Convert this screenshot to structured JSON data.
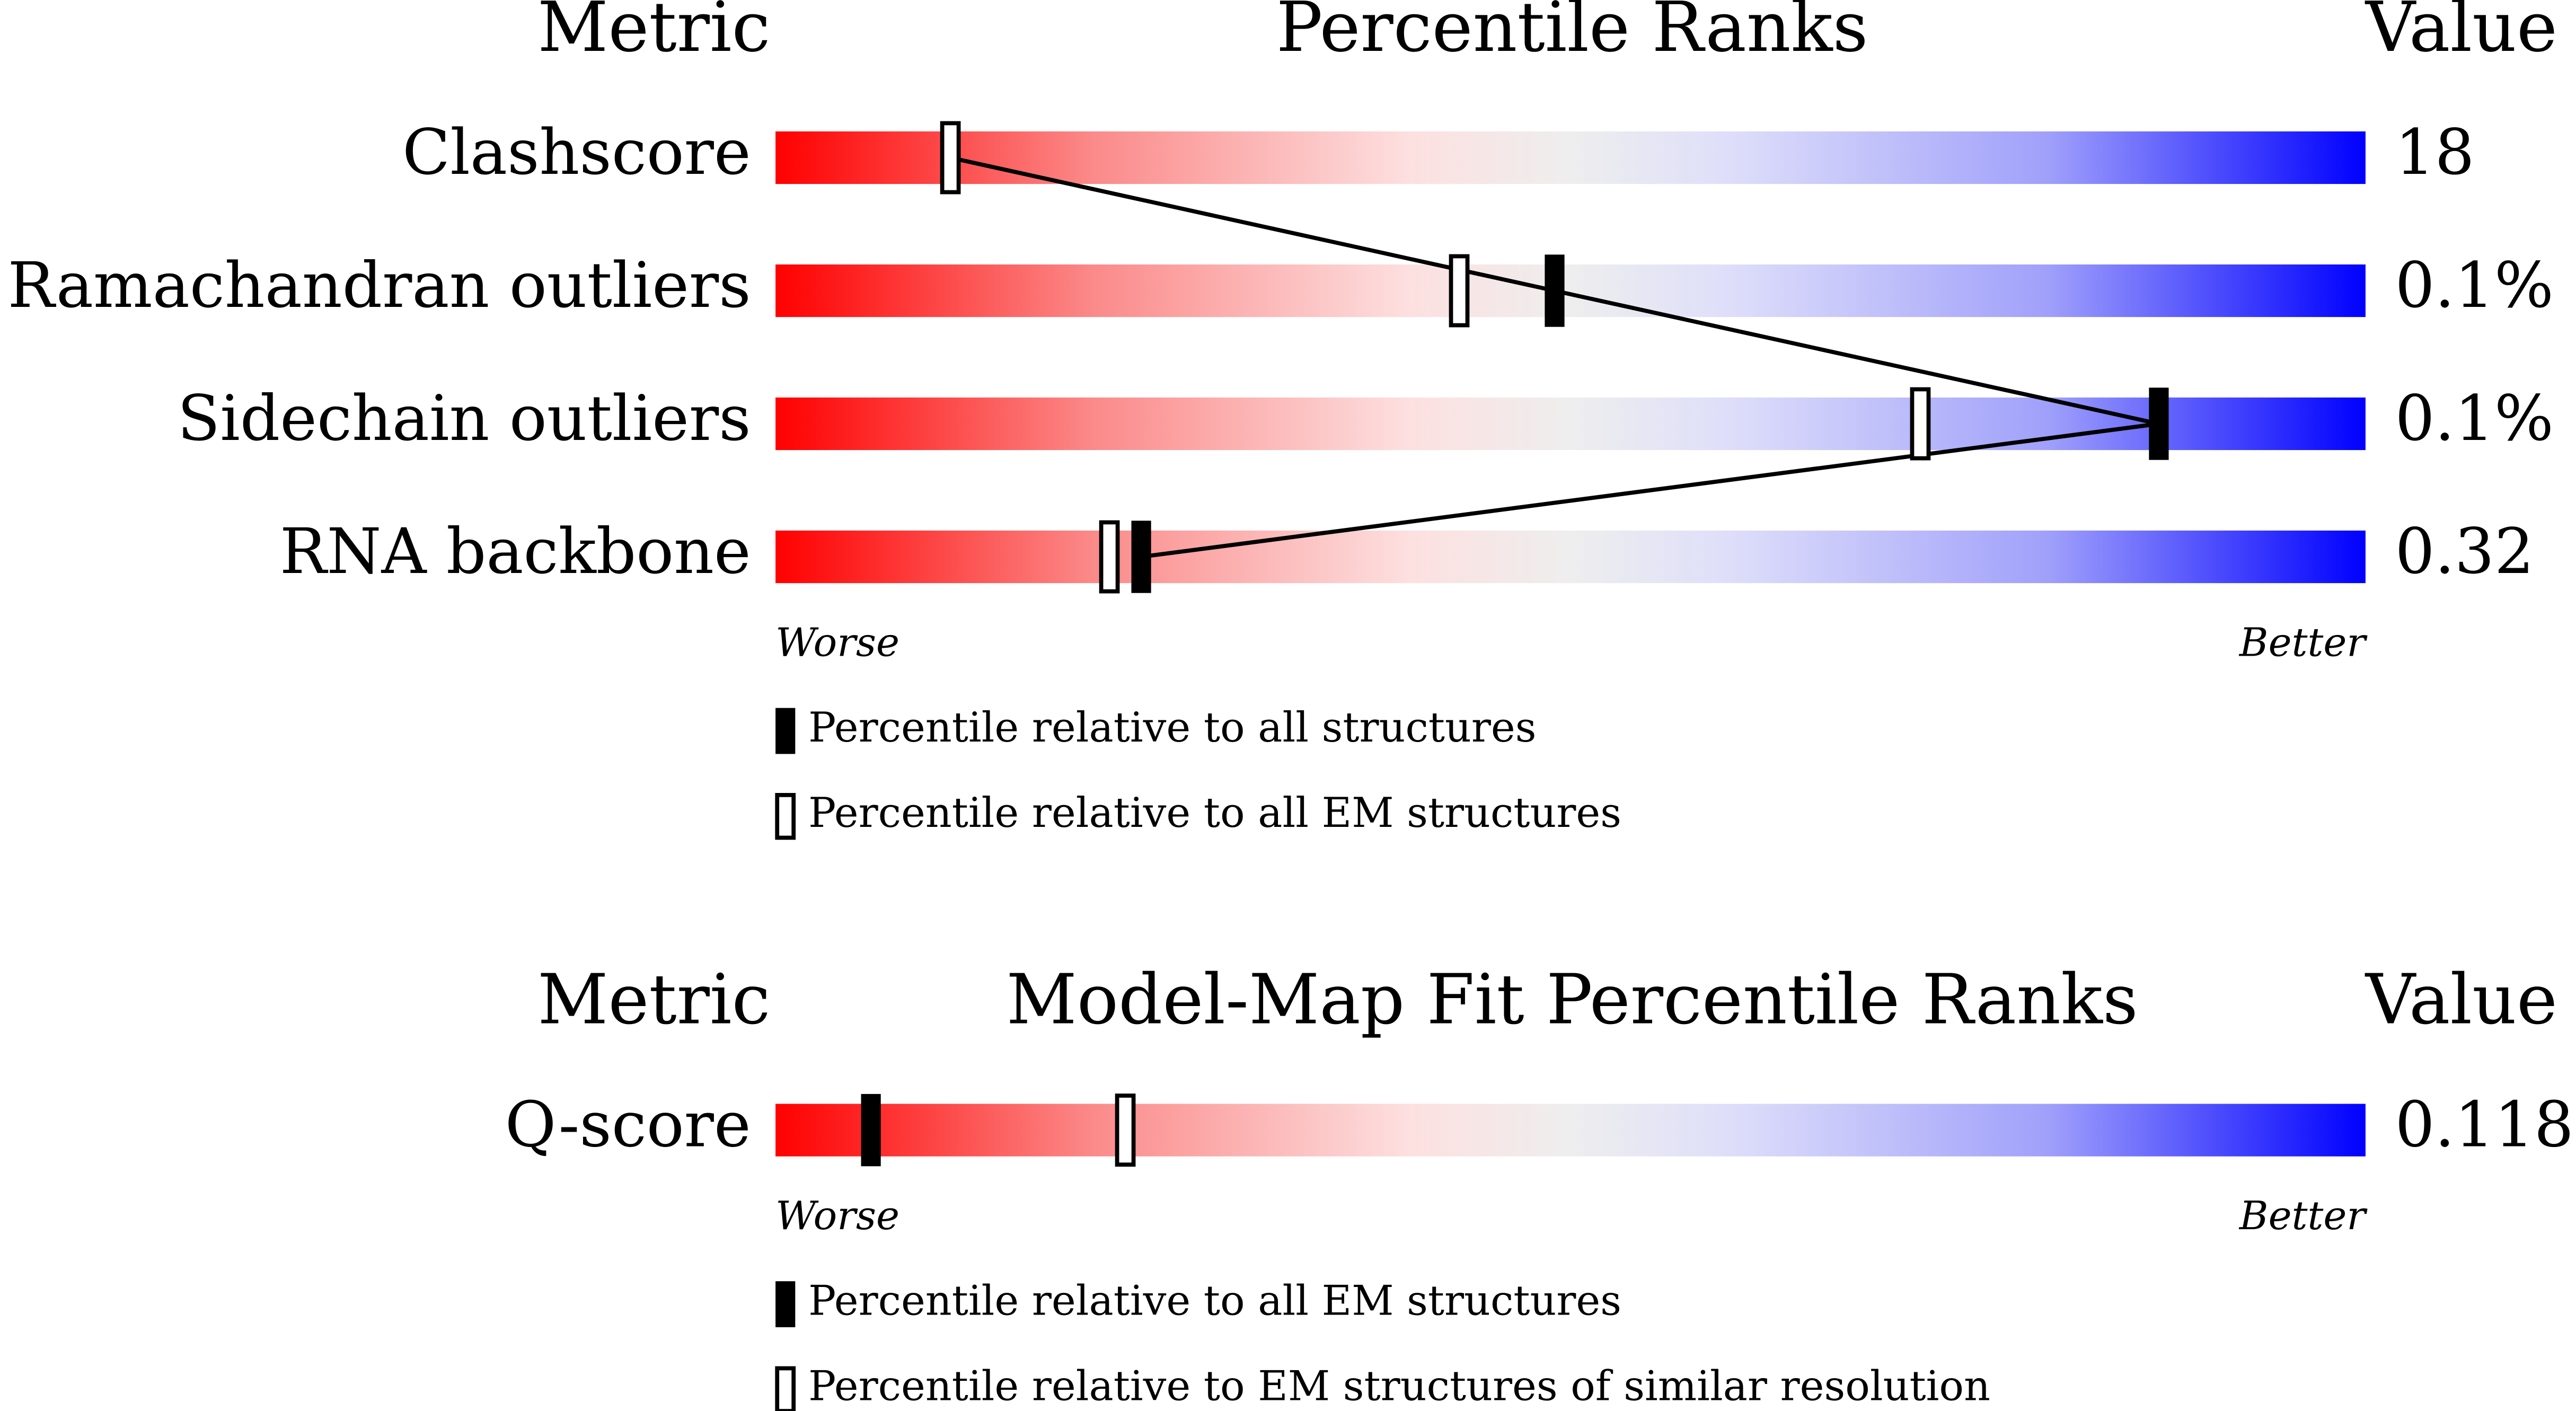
{
  "chart_data": [
    {
      "type": "percentile-slider",
      "header": {
        "metric": "Metric",
        "title": "Percentile Ranks",
        "value": "Value"
      },
      "categories": [
        "Clashscore",
        "Ramachandran outliers",
        "Sidechain outliers",
        "RNA backbone"
      ],
      "value_labels": [
        "18",
        "0.1%",
        "0.1%",
        "0.32"
      ],
      "xlim": [
        0,
        100
      ],
      "worse_label": "Worse",
      "better_label": "Better",
      "series": [
        {
          "name": "Percentile relative to all structures",
          "style": "filled",
          "color": "#000000",
          "values": [
            11,
            49,
            87,
            23
          ]
        },
        {
          "name": "Percentile relative to all EM structures",
          "style": "open",
          "color": "#000000",
          "values": [
            11,
            43,
            72,
            21
          ]
        }
      ]
    },
    {
      "type": "percentile-slider",
      "header": {
        "metric": "Metric",
        "title": "Model-Map Fit Percentile Ranks",
        "value": "Value"
      },
      "categories": [
        "Q-score"
      ],
      "value_labels": [
        "0.118"
      ],
      "xlim": [
        0,
        100
      ],
      "worse_label": "Worse",
      "better_label": "Better",
      "series": [
        {
          "name": "Percentile relative to all EM structures",
          "style": "filled",
          "color": "#000000",
          "values": [
            6
          ]
        },
        {
          "name": "Percentile relative to EM structures of similar resolution",
          "style": "open",
          "color": "#000000",
          "values": [
            22
          ]
        }
      ]
    }
  ]
}
